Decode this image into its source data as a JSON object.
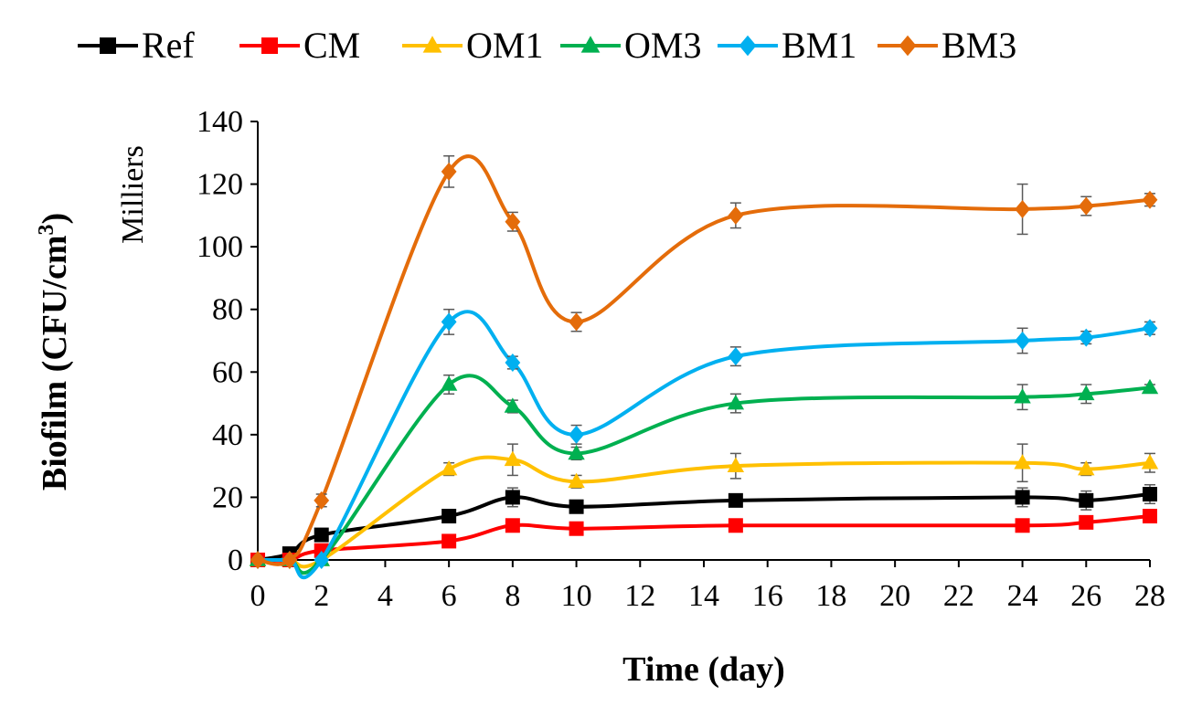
{
  "chart_data": {
    "type": "line",
    "title": "",
    "xlabel": "Time (day)",
    "ylabel_main": "Biofilm (CFU/cm",
    "ylabel_sup": "3",
    "ylabel_close": ")",
    "y_unit": "Milliers",
    "xlim": [
      0,
      28
    ],
    "ylim": [
      0,
      140
    ],
    "xticks": [
      "0",
      "2",
      "4",
      "6",
      "8",
      "10",
      "12",
      "14",
      "16",
      "18",
      "20",
      "22",
      "24",
      "26",
      "28"
    ],
    "yticks": [
      "0",
      "20",
      "40",
      "60",
      "80",
      "100",
      "120",
      "140"
    ],
    "grid": false,
    "legend_position": "top",
    "x": [
      0,
      1,
      2,
      6,
      8,
      10,
      15,
      24,
      26,
      28
    ],
    "series": [
      {
        "name": "Ref",
        "color": "#000000",
        "marker": "square",
        "values": [
          0,
          2,
          8,
          14,
          20,
          17,
          19,
          20,
          19,
          21
        ],
        "errors": [
          0,
          0,
          1,
          2,
          3,
          2,
          2,
          3,
          3,
          3
        ]
      },
      {
        "name": "CM",
        "color": "#ff0000",
        "marker": "square",
        "values": [
          0,
          0,
          3,
          6,
          11,
          10,
          11,
          11,
          12,
          14
        ],
        "errors": [
          0,
          0,
          0,
          1,
          2,
          1,
          1,
          2,
          2,
          2
        ]
      },
      {
        "name": "OM1",
        "color": "#ffc000",
        "marker": "triangle",
        "values": [
          0,
          0,
          0,
          29,
          32,
          25,
          30,
          31,
          29,
          31
        ],
        "errors": [
          0,
          0,
          0,
          2,
          5,
          2,
          4,
          6,
          2,
          3
        ]
      },
      {
        "name": "OM3",
        "color": "#00b050",
        "marker": "triangle",
        "values": [
          0,
          0,
          0,
          56,
          49,
          34,
          50,
          52,
          53,
          55
        ],
        "errors": [
          0,
          0,
          0,
          3,
          2,
          2,
          3,
          4,
          3,
          1
        ]
      },
      {
        "name": "BM1",
        "color": "#00b0f0",
        "marker": "diamond",
        "values": [
          0,
          0,
          0,
          76,
          63,
          40,
          65,
          70,
          71,
          74
        ],
        "errors": [
          0,
          0,
          0,
          4,
          2,
          3,
          3,
          4,
          2,
          2
        ]
      },
      {
        "name": "BM3",
        "color": "#e46c0a",
        "marker": "diamond",
        "values": [
          0,
          0,
          19,
          124,
          108,
          76,
          110,
          112,
          113,
          115
        ],
        "errors": [
          0,
          0,
          2,
          5,
          3,
          3,
          4,
          8,
          3,
          2
        ]
      }
    ]
  }
}
